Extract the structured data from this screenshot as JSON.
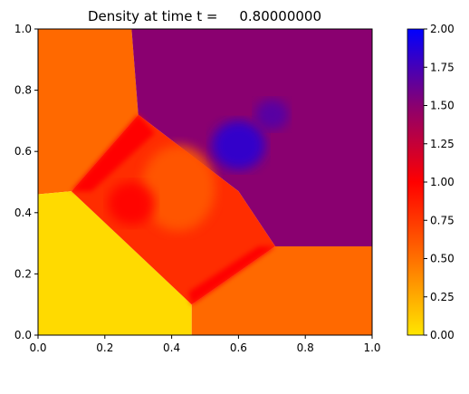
{
  "chart_data": {
    "type": "heatmap",
    "title": "Density at time t =     0.80000000",
    "xlabel": "",
    "ylabel": "",
    "xlim": [
      0,
      1
    ],
    "ylim": [
      0,
      1
    ],
    "x_ticks": [
      "0.0",
      "0.2",
      "0.4",
      "0.6",
      "0.8",
      "1.0"
    ],
    "y_ticks": [
      "0.0",
      "0.2",
      "0.4",
      "0.6",
      "0.8",
      "1.0"
    ],
    "colorbar": {
      "range": [
        0,
        2
      ],
      "ticks": [
        "0.00",
        "0.25",
        "0.50",
        "0.75",
        "1.00",
        "1.25",
        "1.50",
        "1.75",
        "2.00"
      ],
      "colors": [
        "#ffe600",
        "#ff7000",
        "#ff0000",
        "#8a0070",
        "#0000ff"
      ]
    },
    "regions": [
      {
        "name": "upper-left",
        "value": 0.53,
        "polygon": [
          [
            0,
            1
          ],
          [
            0.28,
            1
          ],
          [
            0.3,
            0.72
          ],
          [
            0.1,
            0.47
          ],
          [
            0,
            0.46
          ]
        ]
      },
      {
        "name": "upper-right",
        "value": 1.5,
        "polygon": [
          [
            0.28,
            1
          ],
          [
            1,
            1
          ],
          [
            1,
            0.29
          ],
          [
            0.71,
            0.29
          ],
          [
            0.6,
            0.47
          ],
          [
            0.3,
            0.72
          ]
        ]
      },
      {
        "name": "lower-left",
        "value": 0.05,
        "polygon": [
          [
            0,
            0
          ],
          [
            0.46,
            0
          ],
          [
            0.46,
            0.1
          ],
          [
            0.1,
            0.47
          ],
          [
            0,
            0.46
          ]
        ]
      },
      {
        "name": "lower-right",
        "value": 0.53,
        "polygon": [
          [
            0.46,
            0
          ],
          [
            1,
            0
          ],
          [
            1,
            0.29
          ],
          [
            0.71,
            0.29
          ],
          [
            0.46,
            0.1
          ]
        ]
      },
      {
        "name": "central-diamond",
        "value": 0.8,
        "polygon": [
          [
            0.1,
            0.47
          ],
          [
            0.3,
            0.72
          ],
          [
            0.6,
            0.47
          ],
          [
            0.71,
            0.29
          ],
          [
            0.46,
            0.1
          ]
        ]
      },
      {
        "name": "shear-band-left",
        "value": 1.0,
        "polygon": [
          [
            0.1,
            0.47
          ],
          [
            0.3,
            0.72
          ],
          [
            0.35,
            0.66
          ],
          [
            0.16,
            0.47
          ]
        ]
      },
      {
        "name": "shear-band-bottom",
        "value": 1.0,
        "polygon": [
          [
            0.46,
            0.1
          ],
          [
            0.71,
            0.29
          ],
          [
            0.66,
            0.29
          ],
          [
            0.45,
            0.14
          ]
        ]
      }
    ],
    "features": [
      {
        "name": "vortex-core",
        "cx": 0.42,
        "cy": 0.48,
        "rx": 0.11,
        "ry": 0.14,
        "value": 0.6
      },
      {
        "name": "roll-up",
        "cx": 0.28,
        "cy": 0.43,
        "rx": 0.07,
        "ry": 0.07,
        "value": 1.0
      },
      {
        "name": "high-density-blob",
        "cx": 0.6,
        "cy": 0.62,
        "rx": 0.08,
        "ry": 0.08,
        "value": 1.85
      },
      {
        "name": "high-density-jet",
        "cx": 0.7,
        "cy": 0.72,
        "rx": 0.05,
        "ry": 0.05,
        "value": 1.7
      }
    ]
  }
}
